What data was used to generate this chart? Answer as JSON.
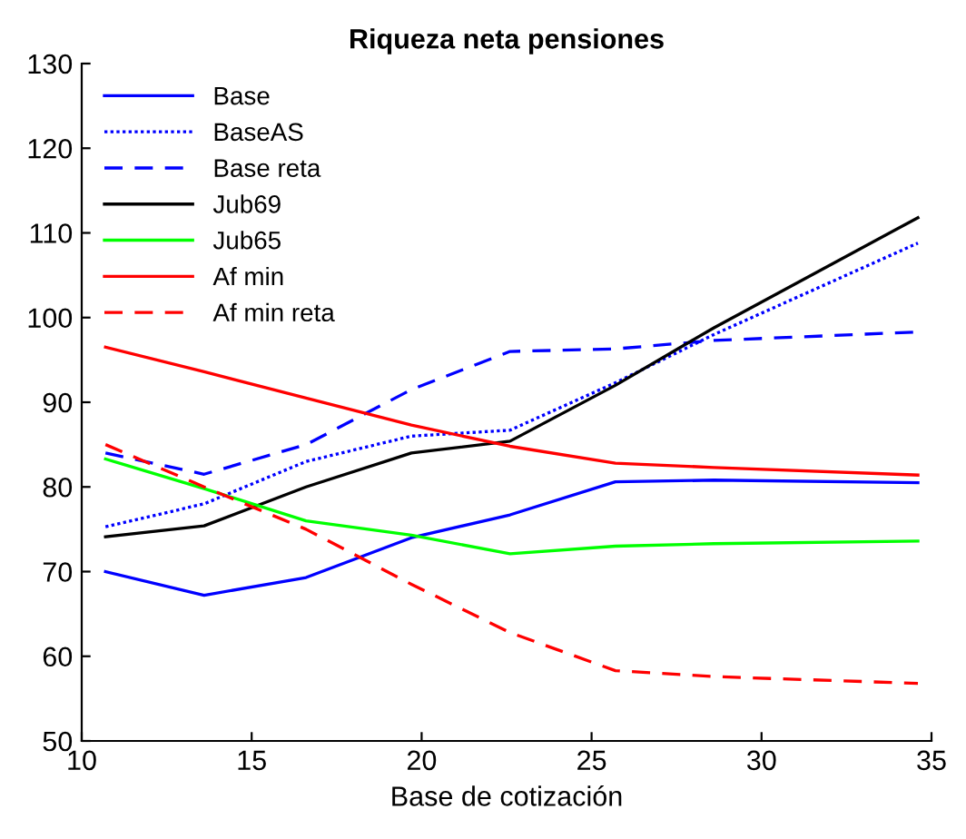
{
  "chart_data": {
    "type": "line",
    "title": "Riqueza neta pensiones",
    "xlabel": "Base de cotización",
    "x": [
      10.7,
      13.6,
      16.6,
      19.7,
      22.6,
      25.7,
      28.6,
      34.6
    ],
    "series": [
      {
        "name": "Base",
        "color": "#0000ff",
        "line_style": "solid",
        "values": [
          70,
          67.2,
          69.3,
          74,
          76.7,
          80.6,
          80.8,
          80.5
        ]
      },
      {
        "name": "BaseAS",
        "color": "#0000ff",
        "line_style": "dotted",
        "values": [
          75.3,
          78,
          83,
          86,
          86.7,
          92.3,
          98,
          108.8
        ]
      },
      {
        "name": "Base reta",
        "color": "#0000ff",
        "line_style": "dashed",
        "values": [
          84,
          81.5,
          85,
          91.5,
          96,
          96.3,
          97.3,
          98.3
        ]
      },
      {
        "name": "Jub69",
        "color": "#000000",
        "line_style": "solid",
        "values": [
          74.1,
          75.4,
          80,
          84,
          85.4,
          92,
          98.8,
          111.8
        ]
      },
      {
        "name": "Jub65",
        "color": "#00ff00",
        "line_style": "solid",
        "values": [
          83.3,
          79.8,
          76,
          74.3,
          72.1,
          73,
          73.3,
          73.6
        ]
      },
      {
        "name": "Af min",
        "color": "#ff0000",
        "line_style": "solid",
        "values": [
          96.5,
          93.6,
          90.5,
          87.3,
          84.8,
          82.8,
          82.3,
          81.4
        ]
      },
      {
        "name": "Af min reta",
        "color": "#ff0000",
        "line_style": "dashed",
        "values": [
          85,
          80,
          75,
          68.5,
          62.8,
          58.3,
          57.6,
          56.8
        ]
      }
    ],
    "xlim": [
      10,
      35
    ],
    "xticks": [
      10,
      15,
      20,
      25,
      30,
      35
    ],
    "ylim": [
      50,
      130
    ],
    "yticks": [
      50,
      60,
      70,
      80,
      90,
      100,
      110,
      120,
      130
    ],
    "grid": false,
    "legend": "top left"
  }
}
